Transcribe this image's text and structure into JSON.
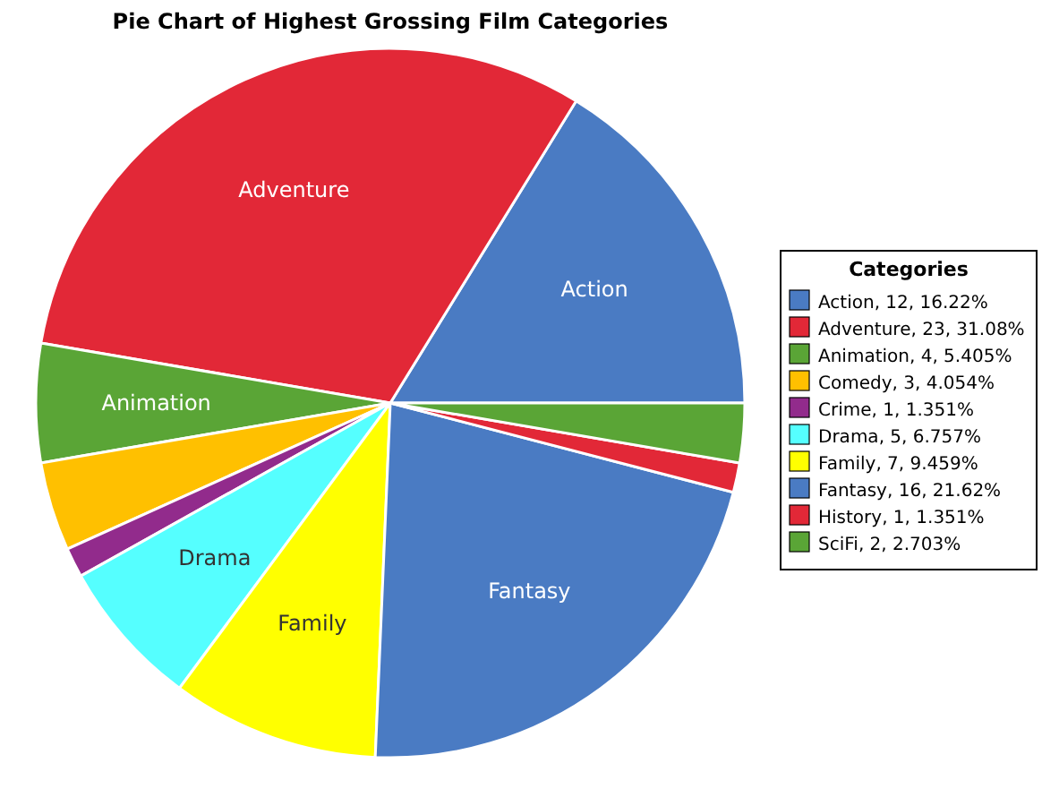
{
  "chart_data": {
    "type": "pie",
    "title": "Pie Chart of Highest Grossing Film Categories",
    "legend_title": "Categories",
    "legend": "right",
    "categories": [
      "Action",
      "Adventure",
      "Animation",
      "Comedy",
      "Crime",
      "Drama",
      "Family",
      "Fantasy",
      "History",
      "SciFi"
    ],
    "values": [
      12,
      23,
      4,
      3,
      1,
      5,
      7,
      16,
      1,
      2
    ],
    "value_labels": [
      ", 12, 16.22%",
      ", 23, 31.08%",
      ", 4, 5.405%",
      ", 3, 4.054%",
      ", 1, 1.351%",
      ", 5, 6.757%",
      ", 7, 9.459%",
      ", 16, 21.62%",
      ", 1, 1.351%",
      ", 2, 2.703%"
    ],
    "colors": [
      "#4a7bc3",
      "#e22837",
      "#5aa536",
      "#ffc000",
      "#922b8c",
      "#55ffff",
      "#ffff00",
      "#4a7bc3",
      "#e22837",
      "#5aa536"
    ]
  }
}
